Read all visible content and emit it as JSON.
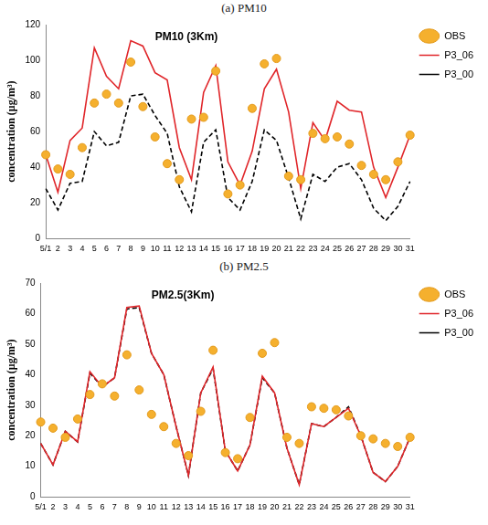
{
  "chart_data": [
    {
      "type": "line",
      "subtitle": "(a) PM10",
      "title": "PM10 (3Km)",
      "y_label": "concentration (μg/m³)",
      "categories": [
        "5/1",
        "2",
        "3",
        "4",
        "5",
        "6",
        "7",
        "8",
        "9",
        "10",
        "11",
        "12",
        "13",
        "14",
        "15",
        "16",
        "17",
        "18",
        "19",
        "20",
        "21",
        "22",
        "23",
        "24",
        "25",
        "26",
        "27",
        "28",
        "29",
        "30",
        "31"
      ],
      "series": [
        {
          "name": "OBS",
          "color": "#f5b02e",
          "marker": "circle",
          "line_style": "none",
          "values": [
            47,
            39,
            36,
            51,
            76,
            81,
            76,
            99,
            74,
            57,
            42,
            33,
            67,
            68,
            94,
            25,
            30,
            73,
            98,
            101,
            35,
            33,
            59,
            56,
            57,
            53,
            41,
            36,
            33,
            43,
            58
          ]
        },
        {
          "name": "P3_06",
          "color": "#e0262a",
          "marker": "none",
          "line_style": "solid",
          "values": [
            47,
            26,
            55,
            62,
            107,
            91,
            84,
            111,
            108,
            93,
            89,
            51,
            33,
            82,
            97,
            43,
            30,
            49,
            84,
            95,
            71,
            28,
            65,
            55,
            77,
            72,
            71,
            40,
            23,
            40,
            58
          ]
        },
        {
          "name": "P3_00",
          "color": "#000000",
          "marker": "none",
          "line_style": "dashed",
          "values": [
            28,
            16,
            31,
            32,
            60,
            52,
            54,
            80,
            81,
            69,
            59,
            29,
            15,
            54,
            61,
            23,
            16,
            32,
            61,
            55,
            34,
            11,
            36,
            32,
            40,
            42,
            33,
            17,
            10,
            18,
            32
          ]
        }
      ],
      "ylim": [
        0,
        120
      ],
      "yticks": [
        0,
        20,
        40,
        60,
        80,
        100,
        120
      ],
      "grid": false,
      "legend": "upper right"
    },
    {
      "type": "line",
      "subtitle": "(b) PM2.5",
      "title": "PM2.5(3Km)",
      "y_label": "concentration (μg/m³)",
      "categories": [
        "5/1",
        "2",
        "3",
        "4",
        "5",
        "6",
        "7",
        "8",
        "9",
        "10",
        "11",
        "12",
        "13",
        "14",
        "15",
        "16",
        "17",
        "18",
        "19",
        "20",
        "21",
        "22",
        "23",
        "24",
        "25",
        "26",
        "27",
        "28",
        "29",
        "30",
        "31"
      ],
      "series": [
        {
          "name": "OBS",
          "color": "#f5b02e",
          "marker": "circle",
          "line_style": "none",
          "values": [
            24.5,
            22.5,
            19.5,
            25.5,
            33.5,
            37,
            33,
            46.5,
            35,
            27,
            23,
            17.5,
            13.5,
            28,
            48,
            14.5,
            12.5,
            26,
            47,
            50.5,
            19.5,
            17.5,
            29.5,
            29,
            28.5,
            26.5,
            20,
            19,
            17.5,
            16.5,
            19.5
          ]
        },
        {
          "name": "P3_06",
          "color": "#e0262a",
          "marker": "none",
          "line_style": "solid",
          "values": [
            17.5,
            10.5,
            21.5,
            18,
            41,
            36,
            39,
            62,
            62.5,
            47,
            40,
            23,
            7,
            34,
            42.5,
            15,
            8.5,
            17,
            39.5,
            34,
            16,
            4,
            24,
            23,
            26,
            29,
            20,
            8,
            5,
            10,
            19.5
          ]
        },
        {
          "name": "P3_00",
          "color": "#000000",
          "marker": "none",
          "line_style": "dashed",
          "values": [
            17.5,
            10.5,
            21.5,
            18,
            40.5,
            36,
            39,
            61.5,
            62,
            47,
            40,
            23,
            7,
            34,
            42,
            15,
            8.5,
            17,
            39,
            34,
            16,
            4,
            24,
            23,
            26,
            29.5,
            20,
            8,
            5,
            10,
            19.5
          ]
        }
      ],
      "ylim": [
        0,
        70
      ],
      "yticks": [
        0,
        10,
        20,
        30,
        40,
        50,
        60,
        70
      ],
      "grid": false,
      "legend": "upper right"
    }
  ]
}
